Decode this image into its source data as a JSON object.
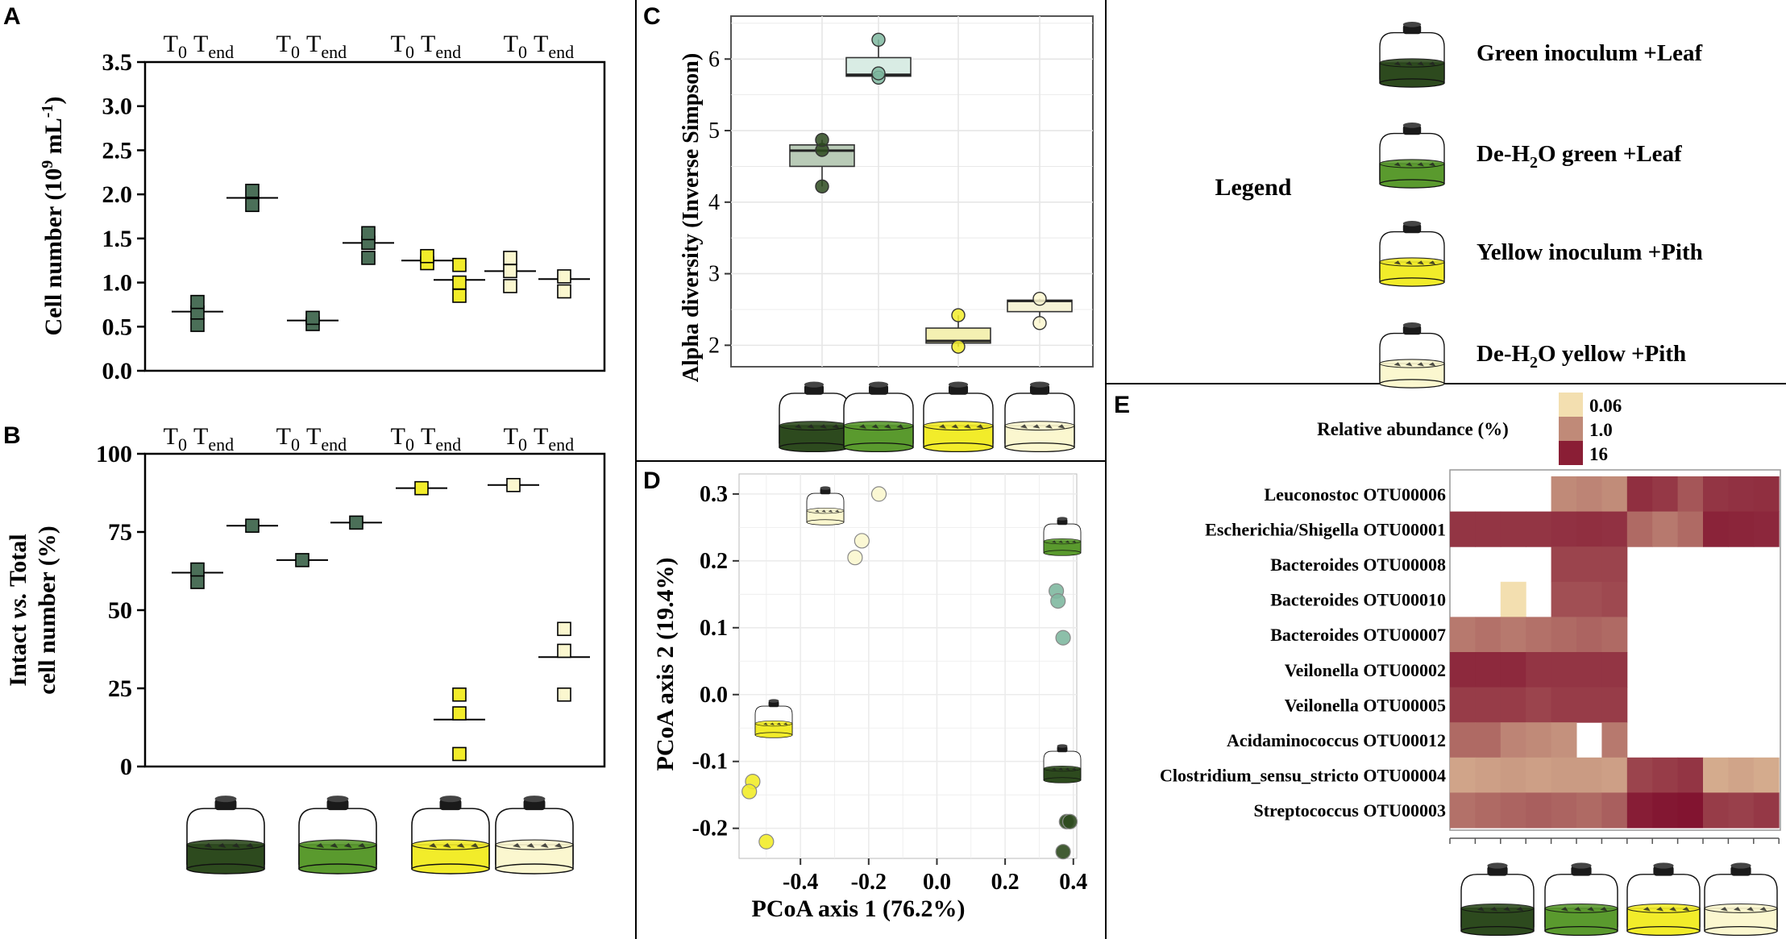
{
  "colors": {
    "green_dark": "#2d4a1e",
    "green_mid": "#4b6f58",
    "green_light": "#5a9a2e",
    "teal": "#7fb8a0",
    "yellow": "#f2ec2a",
    "cream": "#fbf7cf",
    "heat_low": "#f3dfb0",
    "heat_mid": "#c08a78",
    "heat_high": "#8a1e35"
  },
  "chart_data": [
    {
      "id": "A",
      "panel_label": "A",
      "type": "scatter",
      "ylabel_main": "Cell number (10",
      "ylabel_sup_exp": "9",
      "ylabel_unit": " mL",
      "ylabel_sup_neg": "-1",
      "ylabel_close": ")",
      "ylim": [
        0,
        3.5
      ],
      "yticks": [
        "0.0",
        "0.5",
        "1.0",
        "1.5",
        "2.0",
        "2.5",
        "3.0",
        "3.5"
      ],
      "top_labels": [
        "T",
        "0",
        "T",
        "end"
      ],
      "groups": [
        {
          "name": "Green inoculum +Leaf",
          "color": "#4b6f58",
          "t0": {
            "mean": 0.67,
            "points": [
              0.52,
              0.66,
              0.78
            ]
          },
          "tend": {
            "mean": 1.96,
            "points": [
              1.88,
              2.04
            ]
          }
        },
        {
          "name": "De-H2O green +Leaf",
          "color": "#4b6f58",
          "t0": {
            "mean": 0.57,
            "points": [
              0.53,
              0.6
            ]
          },
          "tend": {
            "mean": 1.45,
            "points": [
              1.28,
              1.45,
              1.56
            ]
          }
        },
        {
          "name": "Yellow inoculum +Pith",
          "color": "#f2ec2a",
          "t0": {
            "mean": 1.25,
            "points": [
              1.22,
              1.3
            ]
          },
          "tend": {
            "mean": 1.03,
            "points": [
              0.85,
              1.0,
              1.2
            ]
          }
        },
        {
          "name": "De-H2O yellow +Pith",
          "color": "#fbf7cf",
          "t0": {
            "mean": 1.13,
            "points": [
              0.96,
              1.13,
              1.28
            ]
          },
          "tend": {
            "mean": 1.04,
            "points": [
              0.9,
              1.07
            ]
          }
        }
      ]
    },
    {
      "id": "B",
      "panel_label": "B",
      "type": "scatter",
      "ylabel_line1_a": "Intact ",
      "ylabel_line1_b": "vs.",
      "ylabel_line1_c": " Total",
      "ylabel_line2": "cell number (%)",
      "ylim": [
        0,
        100
      ],
      "yticks": [
        "0",
        "25",
        "50",
        "75",
        "100"
      ],
      "top_labels": [
        "T",
        "0",
        "T",
        "end"
      ],
      "groups": [
        {
          "name": "Green inoculum +Leaf",
          "color": "#4b6f58",
          "t0": {
            "mean": 62,
            "points": [
              59,
              63
            ]
          },
          "tend": {
            "mean": 77,
            "points": [
              77
            ]
          }
        },
        {
          "name": "De-H2O green +Leaf",
          "color": "#4b6f58",
          "t0": {
            "mean": 66,
            "points": [
              66
            ]
          },
          "tend": {
            "mean": 78,
            "points": [
              78
            ]
          }
        },
        {
          "name": "Yellow inoculum +Pith",
          "color": "#f2ec2a",
          "t0": {
            "mean": 89,
            "points": [
              89
            ]
          },
          "tend": {
            "mean": 15,
            "points": [
              4,
              17,
              23
            ]
          }
        },
        {
          "name": "De-H2O yellow +Pith",
          "color": "#fbf7cf",
          "t0": {
            "mean": 90,
            "points": [
              90
            ]
          },
          "tend": {
            "mean": 35,
            "points": [
              23,
              37,
              44
            ]
          }
        }
      ]
    },
    {
      "id": "C",
      "panel_label": "C",
      "type": "box",
      "ylabel": "Alpha diversity (Inverse Simpson)",
      "ylim": [
        1.7,
        6.6
      ],
      "yticks": [
        "2",
        "3",
        "4",
        "5",
        "6"
      ],
      "groups": [
        {
          "name": "Green inoculum +Leaf",
          "color": "#2d4a1e",
          "box_color": "#b9cbb7",
          "q1": 4.5,
          "median": 4.72,
          "q3": 4.8,
          "min": 4.22,
          "max": 4.87,
          "points": [
            4.22,
            4.73,
            4.87
          ]
        },
        {
          "name": "De-H2O green +Leaf",
          "color": "#7fb8a0",
          "box_color": "#d9ece4",
          "q1": 5.76,
          "median": 5.78,
          "q3": 6.02,
          "min": 5.74,
          "max": 6.27,
          "points": [
            5.74,
            5.8,
            6.27
          ]
        },
        {
          "name": "Yellow inoculum +Pith",
          "color": "#f2ec2a",
          "box_color": "#f4f0b2",
          "q1": 2.03,
          "median": 2.06,
          "q3": 2.24,
          "min": 1.98,
          "max": 2.42,
          "points": [
            1.98,
            2.42
          ]
        },
        {
          "name": "De-H2O yellow +Pith",
          "color": "#fbf7cf",
          "box_color": "#f6f3d6",
          "q1": 2.47,
          "median": 2.62,
          "q3": 2.63,
          "min": 2.31,
          "max": 2.65,
          "points": [
            2.31,
            2.65
          ]
        }
      ]
    },
    {
      "id": "D",
      "panel_label": "D",
      "type": "scatter",
      "xlabel": "PCoA axis 1 (76.2%)",
      "ylabel": "PCoA axis 2 (19.4%)",
      "xlim": [
        -0.58,
        0.41
      ],
      "ylim": [
        -0.245,
        0.33
      ],
      "xticks": [
        "-0.4",
        "-0.2",
        "0.0",
        "0.2",
        "0.4"
      ],
      "yticks": [
        "-0.2",
        "-0.1",
        "0.0",
        "0.1",
        "0.2",
        "0.3"
      ],
      "series": [
        {
          "name": "Green inoculum +Leaf",
          "color": "#2d4a1e",
          "points": [
            [
              0.38,
              -0.19
            ],
            [
              0.37,
              -0.235
            ],
            [
              0.39,
              -0.19
            ]
          ]
        },
        {
          "name": "De-H2O green +Leaf",
          "color": "#7fb8a0",
          "points": [
            [
              0.35,
              0.155
            ],
            [
              0.355,
              0.14
            ],
            [
              0.37,
              0.085
            ]
          ]
        },
        {
          "name": "Yellow inoculum +Pith",
          "color": "#f2ec2a",
          "points": [
            [
              -0.54,
              -0.13
            ],
            [
              -0.55,
              -0.145
            ],
            [
              -0.5,
              -0.22
            ]
          ]
        },
        {
          "name": "De-H2O yellow +Pith",
          "color": "#fbf7cf",
          "points": [
            [
              -0.17,
              0.3
            ],
            [
              -0.22,
              0.23
            ],
            [
              -0.24,
              0.205
            ]
          ]
        }
      ]
    },
    {
      "id": "E",
      "panel_label": "E",
      "type": "heatmap",
      "legend_title": "Relative abundance (%)",
      "legend_levels": [
        "0.06",
        "1.0",
        "16"
      ],
      "rows": [
        {
          "label": "Leuconostoc OTU00006",
          "values": [
            null,
            null,
            null,
            null,
            1.3,
            1.5,
            1.2,
            14,
            11,
            5,
            12,
            13,
            14
          ]
        },
        {
          "label": "Escherichia/Shigella OTU00001",
          "values": [
            12,
            12,
            12,
            12,
            13,
            14,
            13,
            3,
            2,
            3,
            19,
            18,
            17
          ]
        },
        {
          "label": "Bacteroides OTU00008",
          "values": [
            null,
            null,
            null,
            null,
            8,
            8,
            8,
            null,
            null,
            null,
            null,
            null,
            null
          ]
        },
        {
          "label": "Bacteroides OTU00010",
          "values": [
            null,
            null,
            0.06,
            null,
            6,
            6,
            7,
            null,
            null,
            null,
            null,
            null,
            null
          ]
        },
        {
          "label": "Bacteroides OTU00007",
          "values": [
            2,
            2.5,
            2,
            2.5,
            3,
            3.5,
            3,
            null,
            null,
            null,
            null,
            null,
            null
          ]
        },
        {
          "label": "Veilonella OTU00002",
          "values": [
            16,
            16,
            16,
            12,
            12,
            12,
            12,
            null,
            null,
            null,
            null,
            null,
            null
          ]
        },
        {
          "label": "Veilonella OTU00005",
          "values": [
            10,
            10,
            10,
            8,
            10,
            10,
            10,
            null,
            null,
            null,
            null,
            null,
            null
          ]
        },
        {
          "label": "Acidaminococcus OTU00012",
          "values": [
            3,
            3,
            1.5,
            1.3,
            1,
            null,
            2,
            null,
            null,
            null,
            null,
            null,
            null
          ]
        },
        {
          "label": "Clostridium_sensu_stricto OTU00004",
          "values": [
            0.5,
            0.6,
            0.7,
            0.6,
            0.7,
            0.7,
            0.6,
            8,
            10,
            12,
            0.4,
            0.5,
            0.4
          ]
        },
        {
          "label": "Streptococcus OTU00003",
          "values": [
            2.5,
            3,
            3.5,
            4,
            3.5,
            3,
            4,
            22,
            26,
            28,
            10,
            9,
            11
          ]
        }
      ],
      "column_groups": [
        "Green inoculum +Leaf",
        "De-H2O green +Leaf",
        "Yellow inoculum +Pith",
        "De-H2O yellow +Pith"
      ]
    }
  ],
  "legend": {
    "title": "Legend",
    "items": [
      {
        "name": "Green inoculum +Leaf",
        "color": "#2d4a1e",
        "label_a": "Green  inoculum +Leaf"
      },
      {
        "name": "De-H2O green +Leaf",
        "color": "#5a9a2e",
        "label_a": "De-H",
        "label_sub": "2",
        "label_b": "O green  +Leaf"
      },
      {
        "name": "Yellow inoculum +Pith",
        "color": "#f2ec2a",
        "label_a": "Yellow inoculum +Pith"
      },
      {
        "name": "De-H2O yellow +Pith",
        "color": "#fbf7cf",
        "label_a": "De-H",
        "label_sub": "2",
        "label_b": "O  yellow  +Pith"
      }
    ]
  }
}
